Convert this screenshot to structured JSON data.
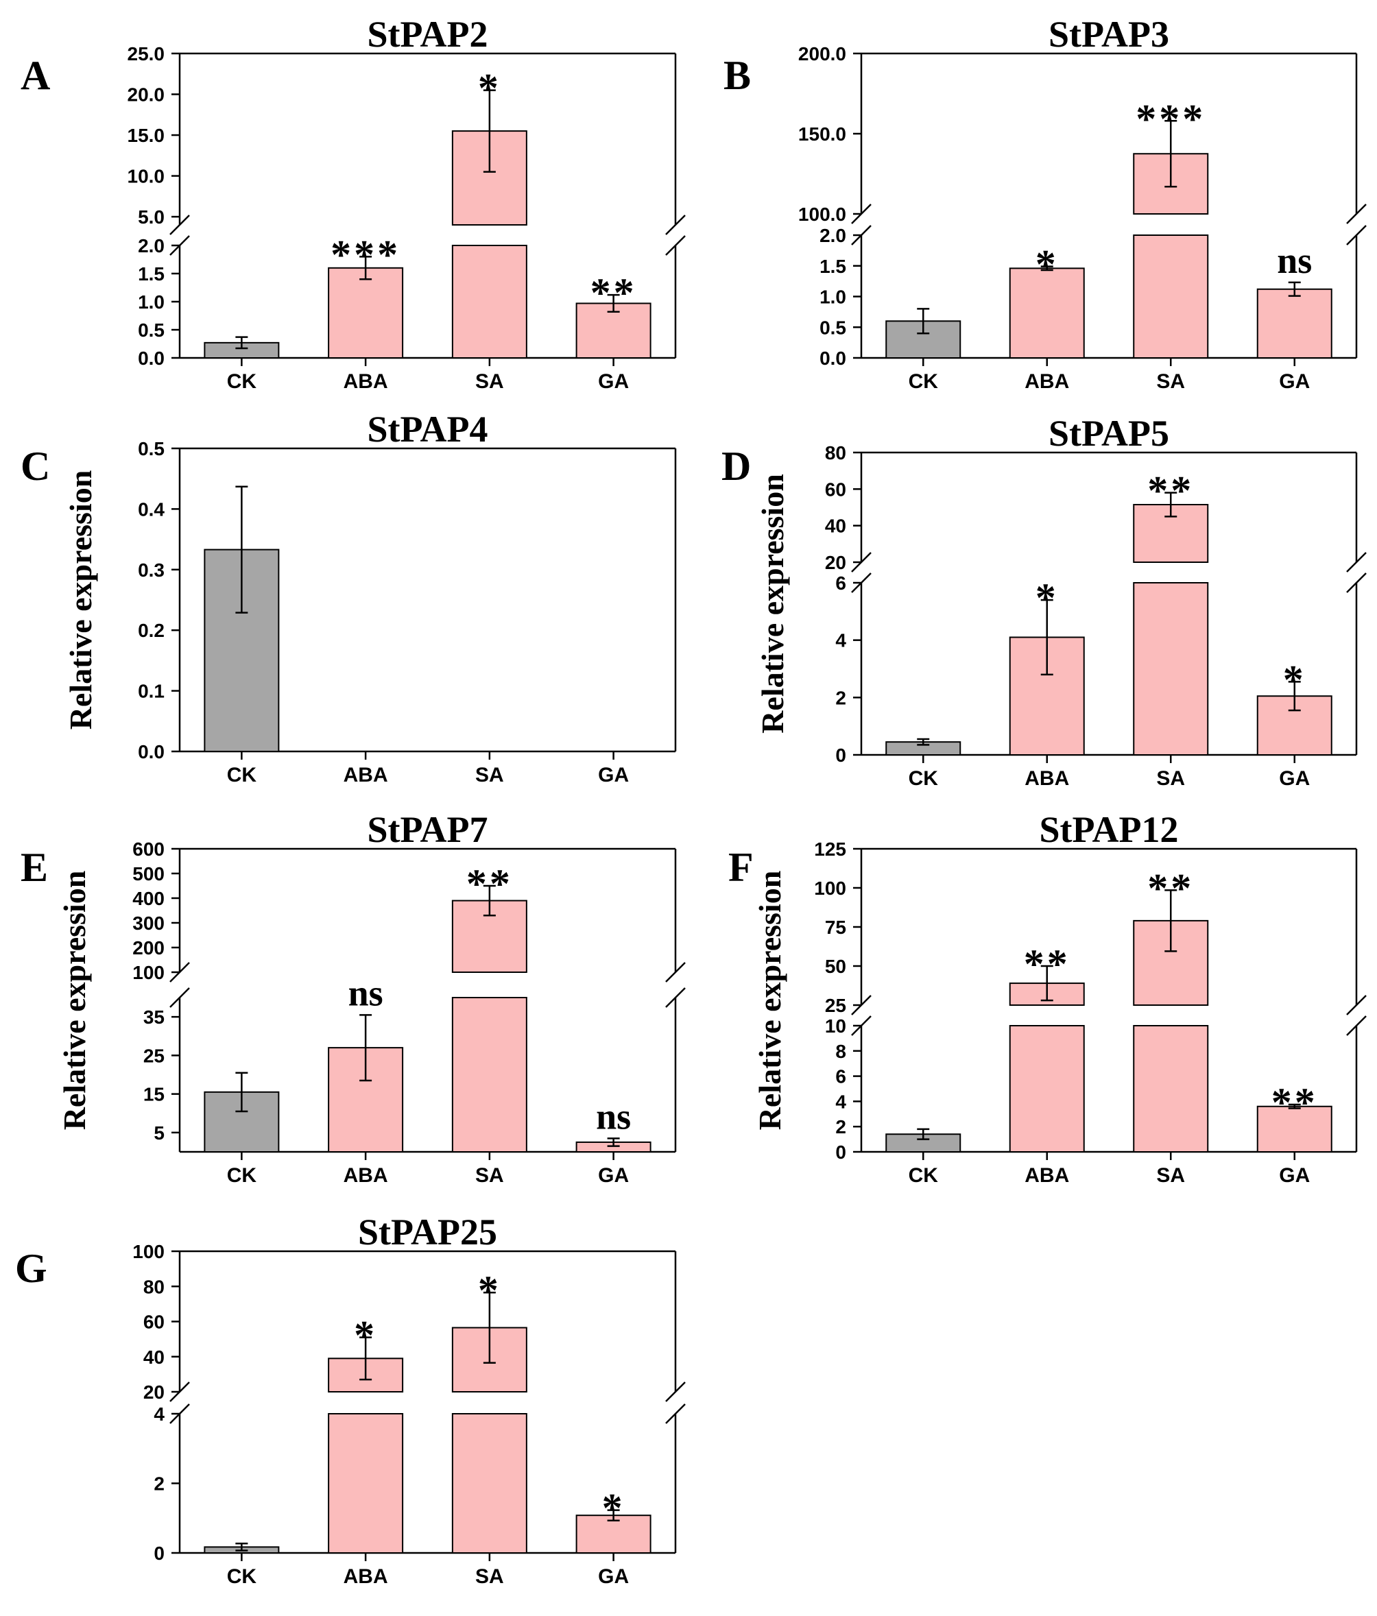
{
  "figure": {
    "colors": {
      "control": "#a6a6a6",
      "treatment": "#fbbcbc",
      "axis": "#000000"
    }
  },
  "chart_data": [
    {
      "type": "bar",
      "panel_label": "A",
      "title": "StPAP2",
      "ylabel": "",
      "categories": [
        "CK",
        "ABA",
        "SA",
        "GA"
      ],
      "values": [
        0.27,
        1.6,
        15.5,
        0.97
      ],
      "errors": [
        0.1,
        0.2,
        5.0,
        0.15
      ],
      "significance": [
        "",
        "***",
        "*",
        "**"
      ],
      "broken_axis": true,
      "lower": {
        "ylim": [
          0,
          2.0
        ],
        "ticks": [
          "0.0",
          "0.5",
          "1.0",
          "1.5",
          "2.0"
        ]
      },
      "upper": {
        "ylim": [
          4.0,
          25.0
        ],
        "ticks": [
          "5.0",
          "10.0",
          "15.0",
          "20.0",
          "25.0"
        ]
      }
    },
    {
      "type": "bar",
      "panel_label": "B",
      "title": "StPAP3",
      "ylabel": "",
      "categories": [
        "CK",
        "ABA",
        "SA",
        "GA"
      ],
      "values": [
        0.6,
        1.46,
        137.5,
        1.12
      ],
      "errors": [
        0.2,
        0.03,
        20.5,
        0.11
      ],
      "significance": [
        "",
        "*",
        "***",
        "ns"
      ],
      "broken_axis": true,
      "lower": {
        "ylim": [
          0,
          2.0
        ],
        "ticks": [
          "0.0",
          "0.5",
          "1.0",
          "1.5",
          "2.0"
        ]
      },
      "upper": {
        "ylim": [
          100.0,
          200.0
        ],
        "ticks": [
          "100.0",
          "150.0",
          "200.0"
        ]
      }
    },
    {
      "type": "bar",
      "panel_label": "C",
      "title": "StPAP4",
      "ylabel": "Relative expression",
      "categories": [
        "CK",
        "ABA",
        "SA",
        "GA"
      ],
      "values": [
        0.333,
        0,
        0,
        0
      ],
      "errors": [
        0.104,
        0,
        0,
        0
      ],
      "significance": [
        "",
        "",
        "",
        ""
      ],
      "broken_axis": false,
      "lower": {
        "ylim": [
          0,
          0.5
        ],
        "ticks": [
          "0.0",
          "0.1",
          "0.2",
          "0.3",
          "0.4",
          "0.5"
        ]
      }
    },
    {
      "type": "bar",
      "panel_label": "D",
      "title": "StPAP5",
      "ylabel": "Relative expression",
      "categories": [
        "CK",
        "ABA",
        "SA",
        "GA"
      ],
      "values": [
        0.45,
        4.1,
        51.5,
        2.05
      ],
      "errors": [
        0.1,
        1.3,
        6.5,
        0.5
      ],
      "significance": [
        "",
        "*",
        "**",
        "*"
      ],
      "broken_axis": true,
      "lower": {
        "ylim": [
          0,
          6
        ],
        "ticks": [
          "0",
          "2",
          "4",
          "6"
        ]
      },
      "upper": {
        "ylim": [
          20,
          80
        ],
        "ticks": [
          "20",
          "40",
          "60",
          "80"
        ]
      }
    },
    {
      "type": "bar",
      "panel_label": "E",
      "title": "StPAP7",
      "ylabel": "Relative expression",
      "categories": [
        "CK",
        "ABA",
        "SA",
        "GA"
      ],
      "values": [
        15.5,
        27,
        390,
        2.5
      ],
      "errors": [
        5.0,
        8.5,
        60,
        1.0
      ],
      "significance": [
        "",
        "ns",
        "**",
        "ns"
      ],
      "broken_axis": true,
      "lower": {
        "ylim": [
          0,
          40
        ],
        "ticks": [
          "5",
          "15",
          "25",
          "35"
        ]
      },
      "upper": {
        "ylim": [
          100,
          600
        ],
        "ticks": [
          "100",
          "200",
          "300",
          "400",
          "500",
          "600"
        ]
      }
    },
    {
      "type": "bar",
      "panel_label": "F",
      "title": "StPAP12",
      "ylabel": "Relative expression",
      "categories": [
        "CK",
        "ABA",
        "SA",
        "GA"
      ],
      "values": [
        1.4,
        39,
        79,
        3.6
      ],
      "errors": [
        0.4,
        11,
        19.5,
        0.15
      ],
      "significance": [
        "",
        "**",
        "**",
        "**"
      ],
      "broken_axis": true,
      "lower": {
        "ylim": [
          0,
          10
        ],
        "ticks": [
          "0",
          "2",
          "4",
          "6",
          "8",
          "10"
        ]
      },
      "upper": {
        "ylim": [
          25,
          125
        ],
        "ticks": [
          "25",
          "50",
          "75",
          "100",
          "125"
        ]
      }
    },
    {
      "type": "bar",
      "panel_label": "G",
      "title": "StPAP25",
      "ylabel": "",
      "categories": [
        "CK",
        "ABA",
        "SA",
        "GA"
      ],
      "values": [
        0.17,
        39,
        56.5,
        1.08
      ],
      "errors": [
        0.1,
        12,
        20,
        0.15
      ],
      "significance": [
        "",
        "*",
        "*",
        "*"
      ],
      "broken_axis": true,
      "lower": {
        "ylim": [
          0,
          4
        ],
        "ticks": [
          "0",
          "2",
          "4"
        ]
      },
      "upper": {
        "ylim": [
          20,
          100
        ],
        "ticks": [
          "20",
          "40",
          "60",
          "80",
          "100"
        ]
      }
    }
  ]
}
